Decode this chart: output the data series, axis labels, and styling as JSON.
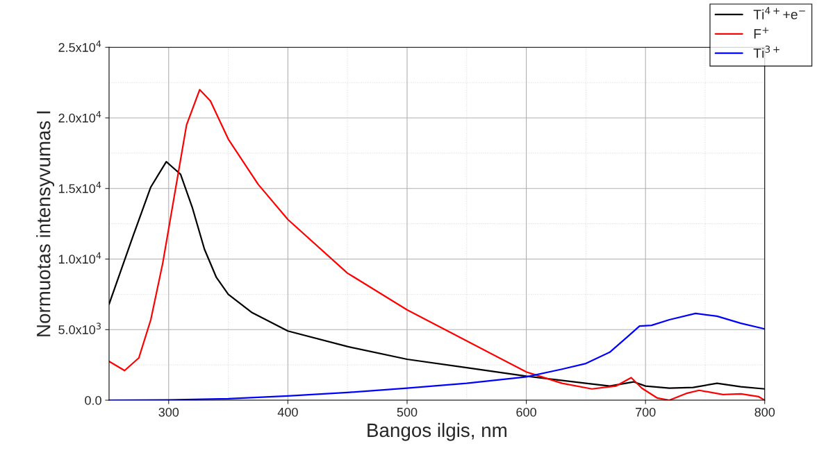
{
  "chart_data": {
    "type": "line",
    "xlabel": "Bangos ilgis, nm",
    "ylabel": "Normuotas intensyvumas I",
    "xlim": [
      250,
      800
    ],
    "xticks": [
      300,
      400,
      500,
      600,
      700,
      800
    ],
    "ylim": [
      0,
      25000
    ],
    "yticks": [
      {
        "value": 0,
        "label": "0.0"
      },
      {
        "value": 5000,
        "label": "5.0x10$^{3}$"
      },
      {
        "value": 10000,
        "label": "1.0x10$^{4}$"
      },
      {
        "value": 15000,
        "label": "1.5x10$^{4}$"
      },
      {
        "value": 20000,
        "label": "2.0x10$^{4}$"
      },
      {
        "value": 25000,
        "label": "2.5x10$^{4}$"
      }
    ],
    "grid": true,
    "legend": "top right",
    "marker": "none",
    "line_style": "solid",
    "series": [
      {
        "name": "Ti$^{4+}$+e$^{−}$",
        "color": "#000000",
        "x": [
          250,
          270,
          285,
          298,
          310,
          320,
          330,
          340,
          350,
          370,
          400,
          450,
          500,
          550,
          600,
          650,
          670,
          690,
          700,
          720,
          740,
          760,
          780,
          800
        ],
        "values": [
          6800,
          11600,
          15100,
          16900,
          16000,
          13600,
          10700,
          8700,
          7500,
          6200,
          4900,
          3800,
          2900,
          2300,
          1700,
          1200,
          1000,
          1300,
          1000,
          850,
          900,
          1200,
          950,
          800
        ]
      },
      {
        "name": "F$^{+}$",
        "color": "#ff0000",
        "x": [
          250,
          263,
          275,
          285,
          295,
          305,
          315,
          326,
          335,
          350,
          375,
          400,
          450,
          500,
          550,
          600,
          630,
          655,
          675,
          688,
          697,
          710,
          720,
          735,
          745,
          765,
          780,
          795,
          800
        ],
        "values": [
          2750,
          2100,
          3000,
          5700,
          9700,
          14600,
          19500,
          22000,
          21200,
          18500,
          15300,
          12800,
          9000,
          6400,
          4200,
          2000,
          1200,
          800,
          1000,
          1600,
          850,
          150,
          0,
          500,
          700,
          400,
          450,
          250,
          0
        ]
      },
      {
        "name": "Ti$^{3+}$",
        "color": "#0000ff",
        "x": [
          250,
          300,
          350,
          400,
          450,
          500,
          550,
          600,
          630,
          650,
          670,
          685,
          695,
          705,
          720,
          742,
          760,
          780,
          800
        ],
        "values": [
          0,
          20,
          100,
          300,
          550,
          850,
          1200,
          1650,
          2200,
          2600,
          3400,
          4500,
          5250,
          5300,
          5700,
          6150,
          5950,
          5450,
          5050
        ]
      }
    ]
  }
}
